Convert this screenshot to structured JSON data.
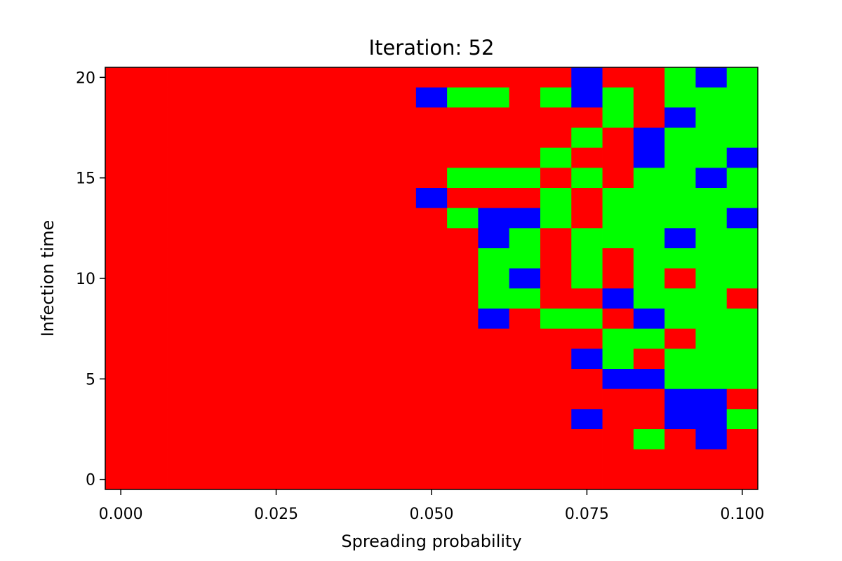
{
  "chart_data": {
    "type": "heatmap",
    "title": "Iteration: 52",
    "xlabel": "Spreading probability",
    "ylabel": "Infection time",
    "x_ticks": [
      "0.000",
      "0.025",
      "0.050",
      "0.075",
      "0.100"
    ],
    "y_ticks": [
      "0",
      "5",
      "10",
      "15",
      "20"
    ],
    "xlim": [
      -0.0025,
      0.1025
    ],
    "ylim": [
      -0.5,
      20.5
    ],
    "x": [
      0.0,
      0.005,
      0.01,
      0.015,
      0.02,
      0.025,
      0.03,
      0.035,
      0.04,
      0.045,
      0.05,
      0.055,
      0.06,
      0.065,
      0.07,
      0.075,
      0.08,
      0.085,
      0.09,
      0.095,
      0.1
    ],
    "y": [
      20,
      19,
      18,
      17,
      16,
      15,
      14,
      13,
      12,
      11,
      10,
      9,
      8,
      7,
      6,
      5,
      4,
      3,
      2,
      1,
      0
    ],
    "color_legend": {
      "R": "#ff0000",
      "G": "#00ff00",
      "B": "#0000ff"
    },
    "rows": [
      "RRRRRRRRRRRRRRRBRRGBG",
      "RRRRRRRRRRBGGRGBGRGGG",
      "RRRRRRRRRRRRRRRRGRBGG",
      "RRRRRRRRRRRRRRRGRBGGG",
      "RRRRRRRRRRRRRRGRRBGGB",
      "RRRRRRRRRRRGGGRGRGGBG",
      "RRRRRRRRRRBRRRGRGGGGG",
      "RRRRRRRRRRRGBBGRGGGGB",
      "RRRRRRRRRRRRBGRGGGBGG",
      "RRRRRRRRRRRRGGRGRGGGG",
      "RRRRRRRRRRRRGBRGRGRGG",
      "RRRRRRRRRRRRGGRRBGGGR",
      "RRRRRRRRRRRRBRGGRBGGG",
      "RRRRRRRRRRRRRRRRGGRGG",
      "RRRRRRRRRRRRRRRBGRGGG",
      "RRRRRRRRRRRRRRRRBBGGG",
      "RRRRRRRRRRRRRRRRRRBBR",
      "RRRRRRRRRRRRRRRBRRBBG",
      "RRRRRRRRRRRRRRRRRGRBR",
      "RRRRRRRRRRRRRRRRRRRRR",
      "RRRRRRRRRRRRRRRRRRRRR"
    ]
  }
}
